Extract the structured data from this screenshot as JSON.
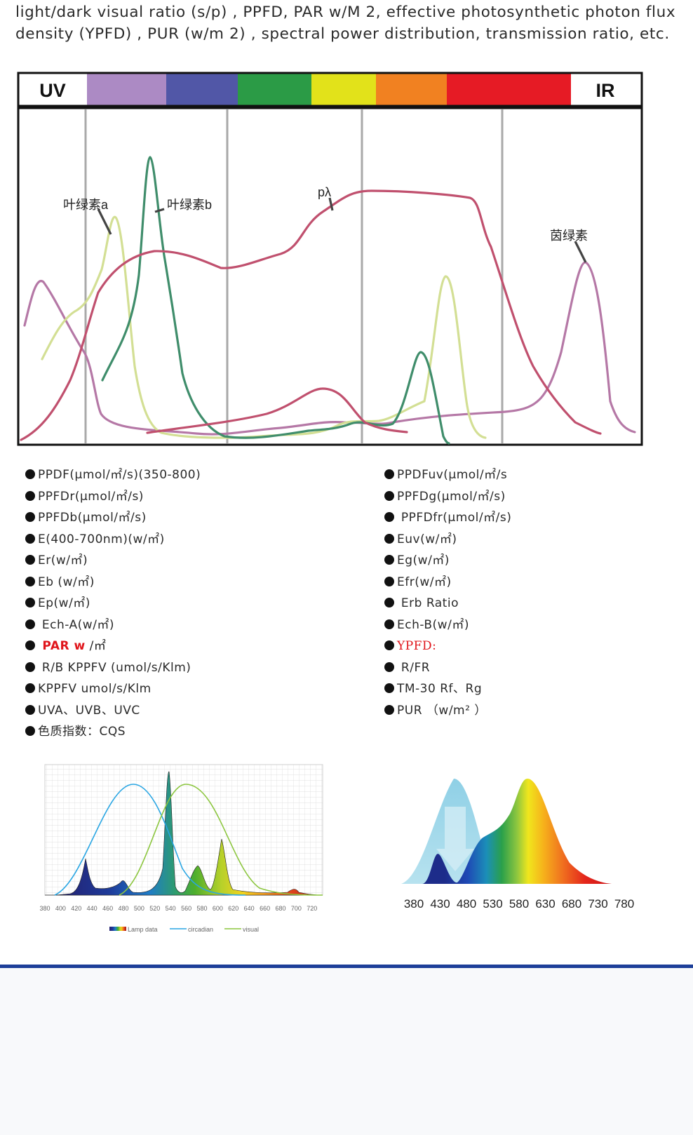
{
  "intro_text": "light/dark visual ratio (s/p) , PPFD, PAR w/M 2, effective photosynthetic photon flux density (YPFD) , PUR (w/m 2) , spectral power distribution, transmission ratio, etc.",
  "spectrum_bar": {
    "uv_label": "UV",
    "ir_label": "IR",
    "colors": [
      "#ac8ac4",
      "#5157a7",
      "#2b9b46",
      "#e2e21a",
      "#f18121",
      "#e61b25"
    ]
  },
  "absorption_chart": {
    "curve_labels": {
      "chlorophyll_a": "叶绿素a",
      "chlorophyll_b": "叶绿素b",
      "p_lambda": "pλ",
      "bacteriochlorophyll": "茵绿素"
    },
    "curve_colors": {
      "p_lambda": "#c0506e",
      "chlorophyll_a": "#d3df94",
      "chlorophyll_b": "#3f8d6b",
      "bacteriochlorophyll": "#b578a6"
    }
  },
  "metrics_left": [
    {
      "text": "PPDF(μmol/㎡/s)(350-800)"
    },
    {
      "text": "PPFDr(μmol/㎡/s)"
    },
    {
      "text": "PPFDb(μmol/㎡/s)"
    },
    {
      "text": "E(400-700nm)(w/㎡)"
    },
    {
      "text": "Er(w/㎡)"
    },
    {
      "text": "Eb (w/㎡)"
    },
    {
      "text": "Ep(w/㎡)"
    },
    {
      "text": " Ech-A(w/㎡)"
    },
    {
      "text": " PAR  w",
      "unit": " /㎡",
      "highlight": true
    },
    {
      "text": " R/B  KPPFV (umol/s/Klm)"
    },
    {
      "text": "KPPFV   umol/s/Klm"
    },
    {
      "text": "UVA、UVB、UVC"
    },
    {
      "text": "色质指数：CQS"
    }
  ],
  "metrics_right": [
    {
      "text": "PPDFuv(μmol/㎡/s"
    },
    {
      "text": "PPFDg(μmol/㎡/s)"
    },
    {
      "text": " PPFDfr(μmol/㎡/s)"
    },
    {
      "text": "Euv(w/㎡)"
    },
    {
      "text": "Eg(w/㎡)"
    },
    {
      "text": "Efr(w/㎡)"
    },
    {
      "text": " Erb Ratio"
    },
    {
      "text": "Ech-B(w/㎡)"
    },
    {
      "text": "YPFD:",
      "highlight": true,
      "serif": true
    },
    {
      "text": "  R/FR"
    },
    {
      "text": "TM-30  Rf、Rg"
    },
    {
      "text": "PUR  （w/m² ）"
    }
  ],
  "lamp_chart": {
    "x_ticks": [
      "380",
      "400",
      "420",
      "440",
      "460",
      "480",
      "500",
      "520",
      "540",
      "560",
      "580",
      "600",
      "620",
      "640",
      "660",
      "680",
      "700",
      "720"
    ],
    "legend": {
      "lamp": "Lamp data",
      "circadian": "circadian",
      "visual": "visual"
    },
    "colors": {
      "circadian": "#2aa6e3",
      "visual": "#8cc63f"
    }
  },
  "rainbow_chart": {
    "x_ticks": [
      "380",
      "430",
      "480",
      "530",
      "580",
      "630",
      "680",
      "730",
      "780"
    ]
  }
}
